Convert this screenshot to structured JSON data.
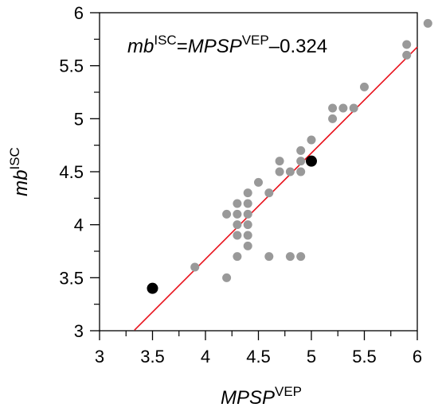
{
  "chart_data": {
    "type": "scatter",
    "xlim": [
      3,
      6
    ],
    "ylim": [
      3,
      6
    ],
    "x_ticks": [
      "3",
      "3.5",
      "4",
      "4.5",
      "5",
      "5.5",
      "6"
    ],
    "y_ticks": [
      "3",
      "3.5",
      "4",
      "4.5",
      "5",
      "5.5",
      "6"
    ],
    "xlabel": {
      "main": "MPSP",
      "sup": "VEP"
    },
    "ylabel": {
      "main": "mb",
      "sup": "ISC"
    },
    "equation": {
      "lhs": "mb",
      "lhs_sup": "ISC",
      "eq": "=",
      "rhs": "MPSP",
      "rhs_sup": "VEP",
      "tail": "–0.324"
    },
    "grid": false,
    "series": [
      {
        "color": "#999999",
        "points": [
          [
            3.9,
            3.6
          ],
          [
            4.2,
            3.5
          ],
          [
            4.2,
            4.1
          ],
          [
            4.3,
            4.2
          ],
          [
            4.3,
            4.1
          ],
          [
            4.3,
            4.0
          ],
          [
            4.3,
            3.9
          ],
          [
            4.3,
            3.7
          ],
          [
            4.4,
            4.3
          ],
          [
            4.4,
            4.2
          ],
          [
            4.4,
            4.1
          ],
          [
            4.4,
            4.0
          ],
          [
            4.4,
            3.9
          ],
          [
            4.4,
            3.8
          ],
          [
            4.5,
            4.4
          ],
          [
            4.6,
            4.3
          ],
          [
            4.6,
            3.7
          ],
          [
            4.7,
            4.6
          ],
          [
            4.7,
            4.5
          ],
          [
            4.8,
            4.5
          ],
          [
            4.8,
            3.7
          ],
          [
            4.9,
            4.7
          ],
          [
            4.9,
            4.6
          ],
          [
            4.9,
            4.5
          ],
          [
            4.9,
            3.7
          ],
          [
            5.0,
            4.8
          ],
          [
            5.2,
            5.1
          ],
          [
            5.2,
            5.0
          ],
          [
            5.3,
            5.1
          ],
          [
            5.4,
            5.1
          ],
          [
            5.5,
            5.3
          ],
          [
            5.9,
            5.7
          ],
          [
            5.9,
            5.6
          ],
          [
            6.1,
            5.9
          ]
        ]
      },
      {
        "color": "#000000",
        "points": [
          [
            3.5,
            3.4
          ],
          [
            5.0,
            4.6
          ]
        ]
      }
    ],
    "fit_line": {
      "color": "#e8111b",
      "x_start": 3.33,
      "x_end": 6.0,
      "offset": -0.324
    }
  }
}
